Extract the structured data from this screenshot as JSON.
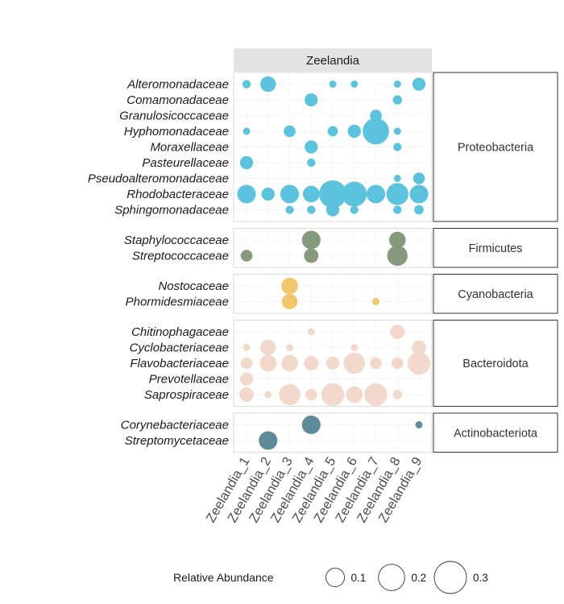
{
  "chart_data": {
    "type": "scatter",
    "facet_title": "Zeelandia",
    "x": [
      "Zeelandia_1",
      "Zeelandia_2",
      "Zeelandia_3",
      "Zeelandia_4",
      "Zeelandia_5",
      "Zeelandia_6",
      "Zeelandia_7",
      "Zeelandia_8",
      "Zeelandia_9"
    ],
    "groups": [
      {
        "name": "Proteobacteria",
        "color": "#5bc3dd",
        "rows": [
          {
            "label": "Alteromonadaceae",
            "values": [
              0.02,
              0.07,
              null,
              null,
              0.015,
              0.015,
              null,
              0.015,
              0.05
            ]
          },
          {
            "label": "Comamonadaceae",
            "values": [
              null,
              null,
              null,
              0.05,
              null,
              null,
              null,
              0.025,
              null
            ]
          },
          {
            "label": "Granulosicoccaceae",
            "values": [
              null,
              null,
              null,
              null,
              null,
              null,
              0.04,
              null,
              null
            ]
          },
          {
            "label": "Hyphomonadaceae",
            "values": [
              0.015,
              null,
              0.04,
              null,
              0.03,
              0.05,
              0.2,
              0.015,
              null
            ]
          },
          {
            "label": "Moraxellaceae",
            "values": [
              null,
              null,
              null,
              0.05,
              null,
              null,
              null,
              0.02,
              null
            ]
          },
          {
            "label": "Pasteurellaceae",
            "values": [
              0.05,
              null,
              null,
              0.02,
              null,
              null,
              null,
              null,
              null
            ]
          },
          {
            "label": "Pseudoalteromonadaceae",
            "values": [
              null,
              null,
              null,
              null,
              null,
              null,
              null,
              0.015,
              0.04
            ]
          },
          {
            "label": "Rhodobacteraceae",
            "values": [
              0.1,
              0.05,
              0.1,
              0.08,
              0.22,
              0.18,
              0.1,
              0.14,
              0.1
            ]
          },
          {
            "label": "Sphingomonadaceae",
            "values": [
              null,
              null,
              0.02,
              0.02,
              0.05,
              0.02,
              null,
              0.02,
              0.025
            ]
          }
        ]
      },
      {
        "name": "Firmicutes",
        "color": "#869a7d",
        "rows": [
          {
            "label": "Staphylococcaceae",
            "values": [
              null,
              null,
              null,
              0.1,
              null,
              null,
              null,
              0.08,
              null
            ]
          },
          {
            "label": "Streptococcaceae",
            "values": [
              0.04,
              null,
              null,
              0.06,
              null,
              null,
              null,
              0.12,
              null
            ]
          }
        ]
      },
      {
        "name": "Cyanobacteria",
        "color": "#f2c66e",
        "rows": [
          {
            "label": "Nostocaceae",
            "values": [
              null,
              null,
              0.08,
              null,
              null,
              null,
              null,
              null,
              null
            ]
          },
          {
            "label": "Phormidesmiaceae",
            "values": [
              null,
              null,
              0.07,
              null,
              null,
              null,
              0.015,
              null,
              null
            ]
          }
        ]
      },
      {
        "name": "Bacteroidota",
        "color": "#f2d9cb",
        "rows": [
          {
            "label": "Chitinophagaceae",
            "values": [
              null,
              null,
              null,
              0.015,
              null,
              null,
              null,
              0.06,
              null
            ]
          },
          {
            "label": "Cyclobacteriaceae",
            "values": [
              0.015,
              0.07,
              0.015,
              null,
              null,
              0.015,
              null,
              null,
              0.06
            ]
          },
          {
            "label": "Flavobacteriaceae",
            "values": [
              0.04,
              0.08,
              0.08,
              0.06,
              0.05,
              0.13,
              0.04,
              0.04,
              0.15
            ]
          },
          {
            "label": "Prevotellaceae",
            "values": [
              0.05,
              null,
              null,
              null,
              null,
              null,
              null,
              null,
              null
            ]
          },
          {
            "label": "Saprospiraceae",
            "values": [
              0.06,
              0.015,
              0.13,
              0.04,
              0.15,
              0.08,
              0.15,
              0.025,
              null
            ]
          }
        ]
      },
      {
        "name": "Actinobacteriota",
        "color": "#5e8a99",
        "rows": [
          {
            "label": "Corynebacteriaceae",
            "values": [
              null,
              null,
              null,
              0.1,
              null,
              null,
              null,
              null,
              0.015
            ]
          },
          {
            "label": "Streptomycetaceae",
            "values": [
              null,
              0.1,
              null,
              null,
              null,
              null,
              null,
              null,
              null
            ]
          }
        ]
      }
    ],
    "legend": {
      "title": "Relative Abundance",
      "sizes": [
        0.1,
        0.2,
        0.3
      ],
      "labels": [
        "0.1",
        "0.2",
        "0.3"
      ],
      "placement": "bottom"
    },
    "grid": true
  }
}
